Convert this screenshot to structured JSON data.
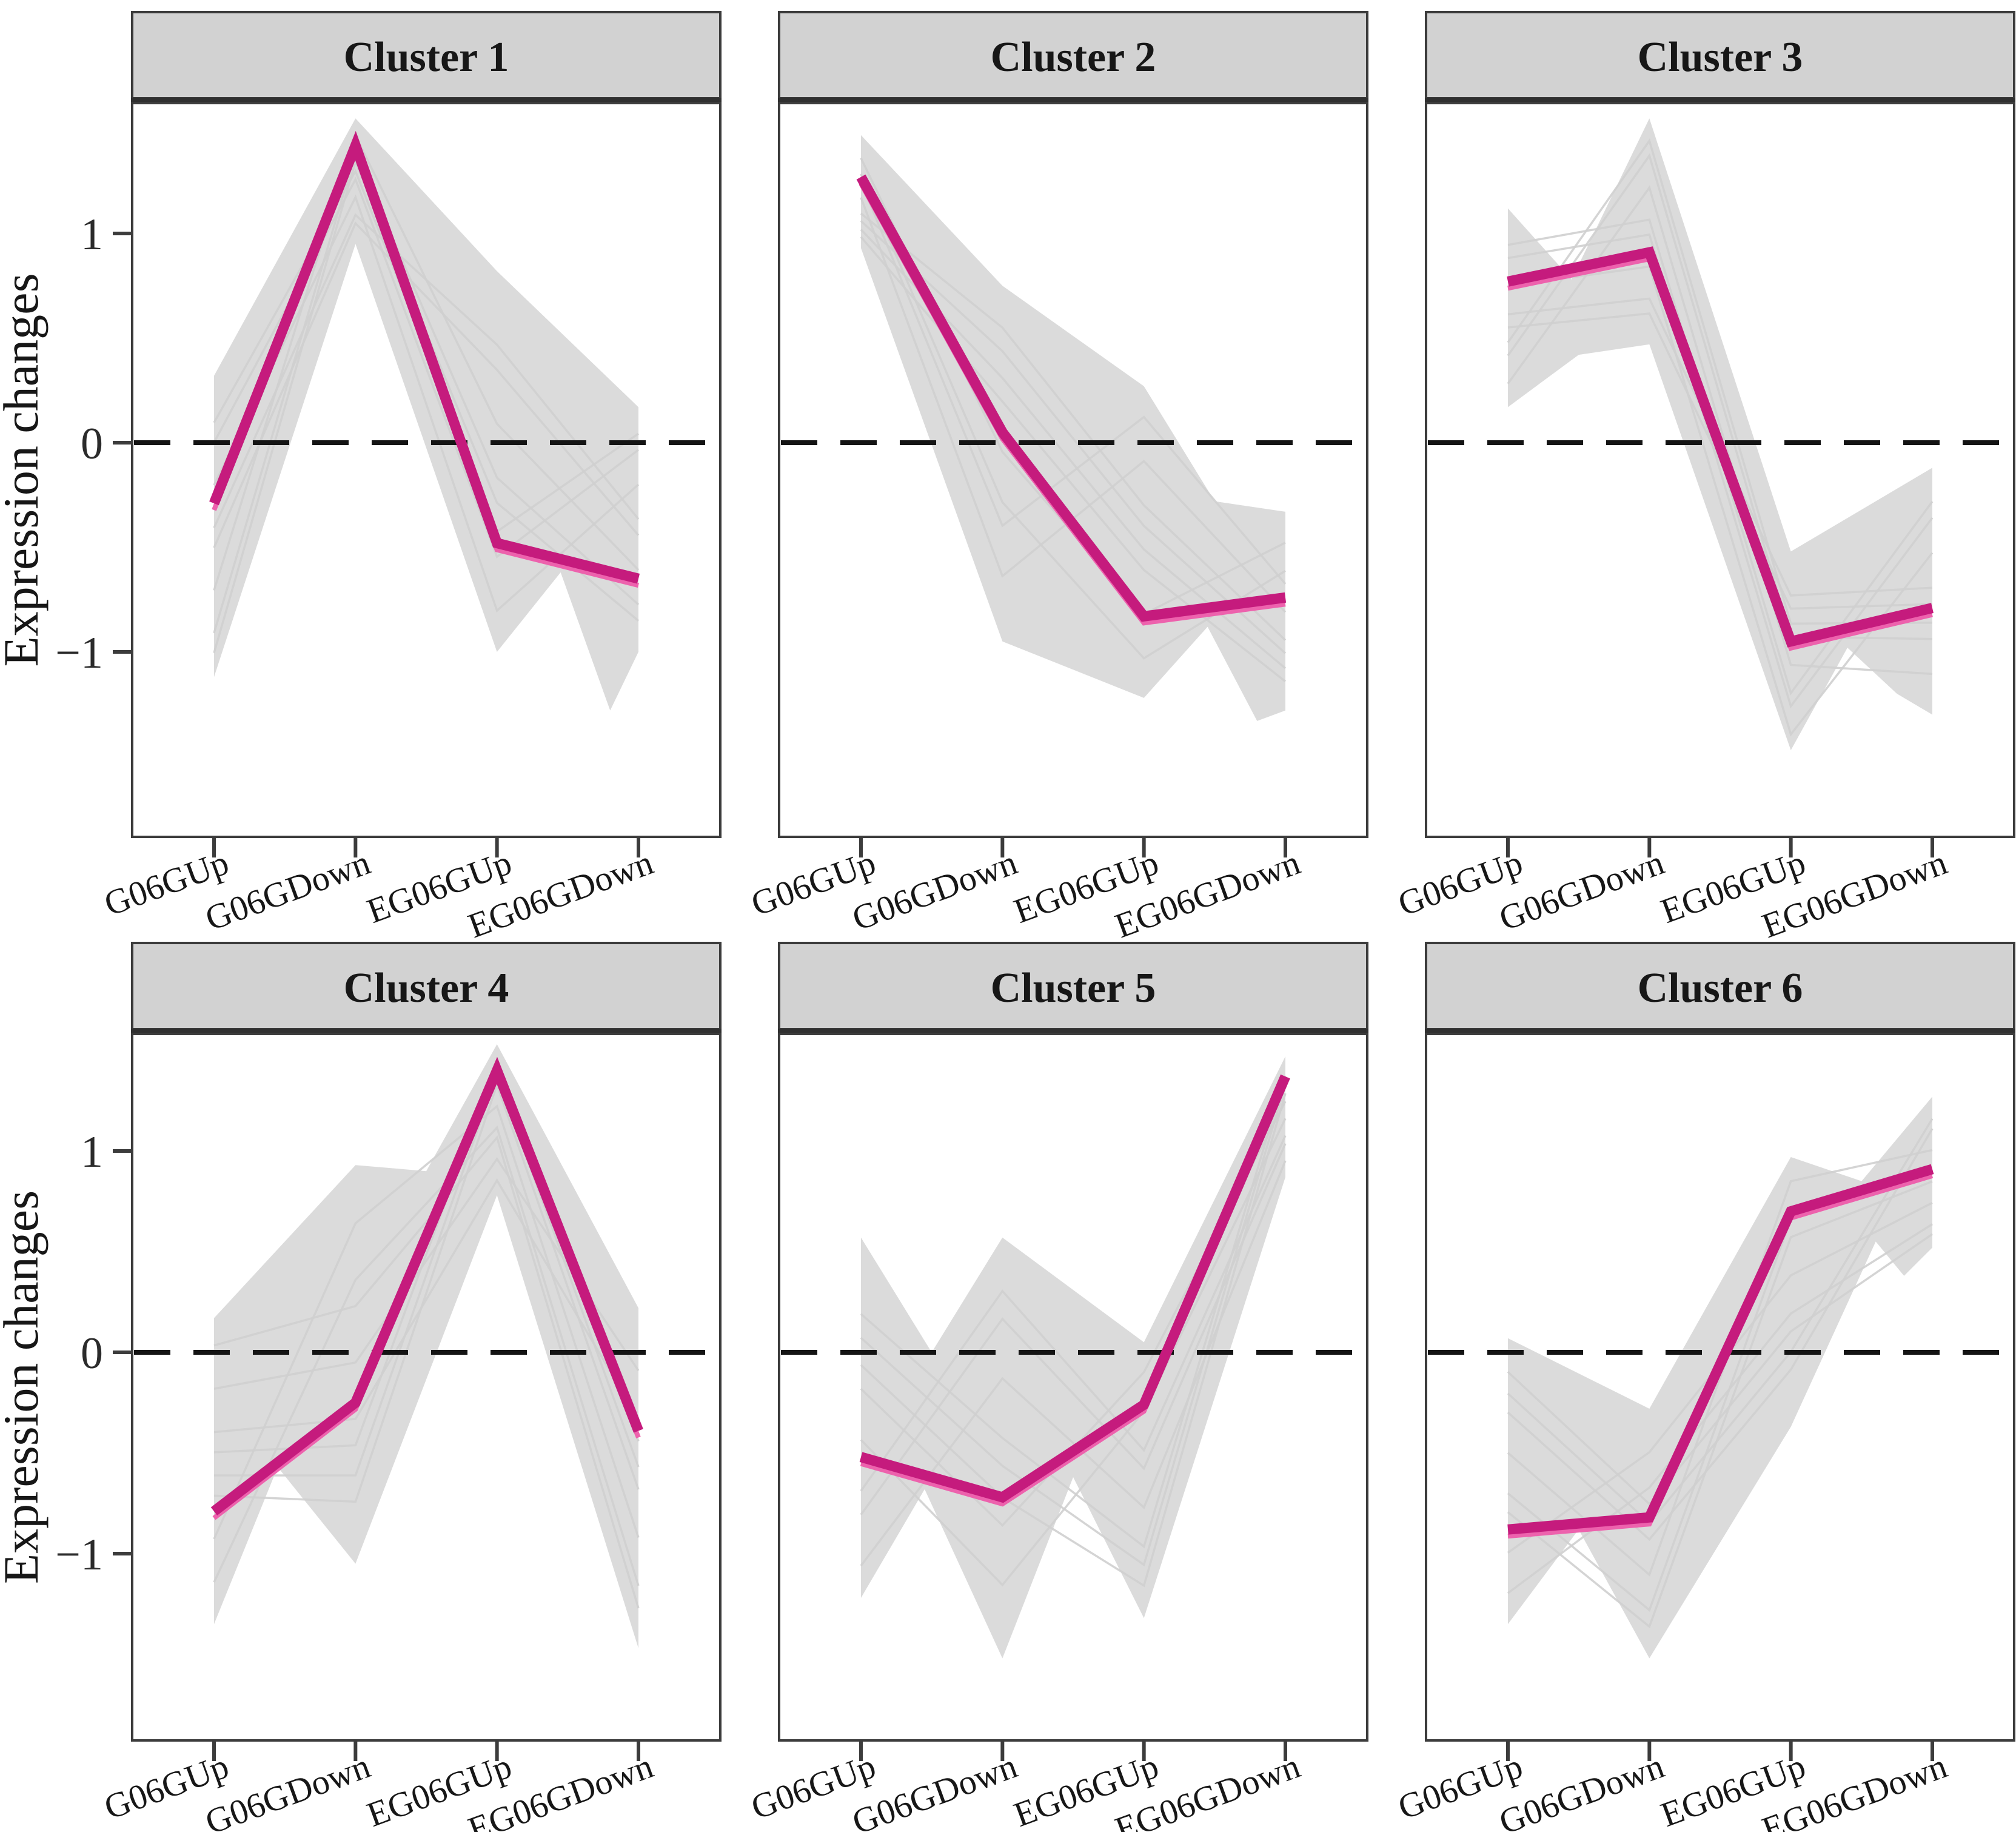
{
  "chart_data": {
    "type": "line",
    "facet_layout": "2 rows x 3 columns",
    "categories": [
      "G06GUp",
      "G06GDown",
      "EG06GUp",
      "EG06GDown"
    ],
    "ylabel": "Expression changes",
    "yticks": [
      1,
      0,
      -1
    ],
    "ytick_labels": [
      "1",
      "0",
      "−1"
    ],
    "baseline_y": 0,
    "ylim": [
      -1.9,
      1.6
    ],
    "grid": "off",
    "legend": "none",
    "facets": [
      {
        "label": "Cluster 1",
        "mean": [
          -0.29,
          1.42,
          -0.48,
          -0.65
        ],
        "band_top": [
          [
            0,
            0.32
          ],
          [
            1,
            1.55
          ],
          [
            2,
            0.82
          ],
          [
            3,
            0.17
          ]
        ],
        "band_bottom": [
          [
            0,
            -1.12
          ],
          [
            1,
            0.95
          ],
          [
            2,
            -1.0
          ],
          [
            2.45,
            -0.62
          ],
          [
            2.8,
            -1.28
          ],
          [
            3,
            -1.0
          ]
        ]
      },
      {
        "label": "Cluster 2",
        "mean": [
          1.27,
          0.05,
          -0.83,
          -0.74
        ],
        "band_top": [
          [
            0,
            1.47
          ],
          [
            1,
            0.75
          ],
          [
            2,
            0.27
          ],
          [
            2.5,
            -0.28
          ],
          [
            3,
            -0.33
          ]
        ],
        "band_bottom": [
          [
            0,
            0.93
          ],
          [
            1,
            -0.95
          ],
          [
            2,
            -1.22
          ],
          [
            2.45,
            -0.88
          ],
          [
            2.8,
            -1.33
          ],
          [
            3,
            -1.28
          ]
        ]
      },
      {
        "label": "Cluster 3",
        "mean": [
          0.77,
          0.91,
          -0.95,
          -0.79
        ],
        "band_top": [
          [
            0,
            1.12
          ],
          [
            0.45,
            0.78
          ],
          [
            1,
            1.55
          ],
          [
            2,
            -0.52
          ],
          [
            3,
            -0.12
          ]
        ],
        "band_bottom": [
          [
            0,
            0.17
          ],
          [
            0.5,
            0.42
          ],
          [
            1,
            0.47
          ],
          [
            2,
            -1.47
          ],
          [
            2.4,
            -0.98
          ],
          [
            2.75,
            -1.2
          ],
          [
            3,
            -1.3
          ]
        ]
      },
      {
        "label": "Cluster 4",
        "mean": [
          -0.79,
          -0.25,
          1.4,
          -0.39
        ],
        "band_top": [
          [
            0,
            0.17
          ],
          [
            1,
            0.93
          ],
          [
            1.5,
            0.9
          ],
          [
            2,
            1.53
          ],
          [
            3,
            0.22
          ]
        ],
        "band_bottom": [
          [
            0,
            -1.35
          ],
          [
            0.45,
            -0.57
          ],
          [
            1,
            -1.05
          ],
          [
            2,
            0.78
          ],
          [
            3,
            -1.47
          ]
        ]
      },
      {
        "label": "Cluster 5",
        "mean": [
          -0.52,
          -0.72,
          -0.26,
          1.37
        ],
        "band_top": [
          [
            0,
            0.57
          ],
          [
            0.5,
            0.0
          ],
          [
            1,
            0.57
          ],
          [
            2,
            0.05
          ],
          [
            3,
            1.47
          ]
        ],
        "band_bottom": [
          [
            0,
            -1.22
          ],
          [
            0.45,
            -0.68
          ],
          [
            1,
            -1.52
          ],
          [
            1.5,
            -0.62
          ],
          [
            2,
            -1.32
          ],
          [
            3,
            0.87
          ]
        ]
      },
      {
        "label": "Cluster 6",
        "mean": [
          -0.88,
          -0.82,
          0.7,
          0.91
        ],
        "band_top": [
          [
            0,
            0.07
          ],
          [
            1,
            -0.28
          ],
          [
            2,
            0.97
          ],
          [
            2.5,
            0.85
          ],
          [
            3,
            1.27
          ]
        ],
        "band_bottom": [
          [
            0,
            -1.35
          ],
          [
            0.5,
            -0.88
          ],
          [
            1,
            -1.52
          ],
          [
            2,
            -0.37
          ],
          [
            2.6,
            0.55
          ],
          [
            2.8,
            0.38
          ],
          [
            3,
            0.52
          ]
        ]
      }
    ],
    "colors": {
      "mean_line": "#C51B7D",
      "mean_edge": "#ED62AD",
      "band": "#DBDBDB",
      "texture_line": "#CFCFCF",
      "strip_fill": "#D2D2D2",
      "border": "#3C3C3C",
      "dashed_line": "#141414",
      "text": "#1A1A1A",
      "background": "#FFFFFF"
    }
  }
}
